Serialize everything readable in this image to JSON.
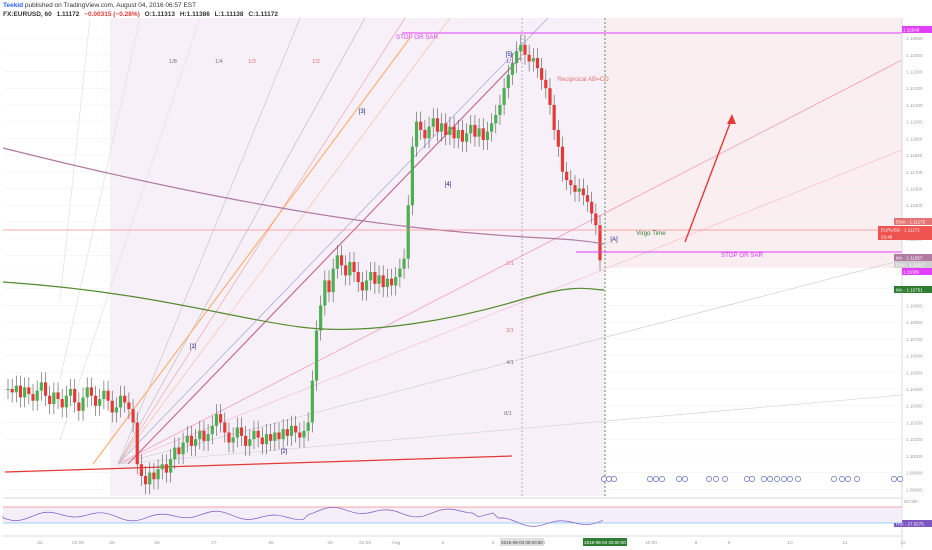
{
  "header": {
    "author": "Teekid",
    "published_text": "published on TradingView.com, August 04, 2016 06:57 EST",
    "symbol": "FX:EURUSD, 60",
    "last": "1.11172",
    "change": "−0.00315 (−0.28%)",
    "open": "O:1.11313",
    "high": "H:1.11386",
    "low": "L:1.11138",
    "close": "C:1.11172"
  },
  "chart_data": {
    "type": "line",
    "title": "",
    "price_axis_ticks": [
      "1.12500",
      "1.12400",
      "1.12300",
      "1.12200",
      "1.12100",
      "1.12000",
      "1.11900",
      "1.11800",
      "1.11700",
      "1.11600",
      "1.11500",
      "1.11400",
      "1.11300",
      "1.11200",
      "1.11100",
      "1.11000",
      "1.10900",
      "1.10800",
      "1.10700",
      "1.10600",
      "1.10500",
      "1.10400",
      "1.10300",
      "1.10200",
      "1.10100",
      "1.10000",
      "1.09900",
      "1.09800"
    ],
    "time_axis_ticks": [
      "22",
      "22:00",
      "25",
      "26",
      "27",
      "28",
      "29",
      "21:00",
      "Aug",
      "2",
      "3",
      "4",
      "10:00",
      "8",
      "9",
      "10",
      "11",
      "12"
    ],
    "time_markers": [
      "2016-08-03 09:00:00",
      "2016-08-04 20:00:00"
    ],
    "price_series_close": [
      1.104,
      1.1038,
      1.1042,
      1.1035,
      1.1041,
      1.1037,
      1.1033,
      1.1039,
      1.1044,
      1.1036,
      1.1031,
      1.1038,
      1.1034,
      1.1029,
      1.1036,
      1.104,
      1.1032,
      1.1027,
      1.1035,
      1.1041,
      1.1036,
      1.103,
      1.1034,
      1.1039,
      1.1033,
      1.1026,
      1.1029,
      1.1036,
      1.1032,
      1.1028,
      1.102,
      1.0995,
      1.0988,
      1.0983,
      1.099,
      1.0986,
      1.0992,
      1.0995,
      1.099,
      1.0998,
      1.1005,
      1.1001,
      1.1008,
      1.1012,
      1.1006,
      1.101,
      1.1015,
      1.1009,
      1.1013,
      1.1018,
      1.1025,
      1.102,
      1.1014,
      1.1008,
      1.1011,
      1.1017,
      1.1012,
      1.1006,
      1.101,
      1.1015,
      1.1011,
      1.1007,
      1.1013,
      1.1009,
      1.1014,
      1.101,
      1.1016,
      1.1012,
      1.1018,
      1.1014,
      1.1011,
      1.1015,
      1.102,
      1.1045,
      1.1075,
      1.109,
      1.1105,
      1.1098,
      1.1112,
      1.112,
      1.1114,
      1.1108,
      1.1116,
      1.111,
      1.1104,
      1.1099,
      1.1105,
      1.111,
      1.1103,
      1.1108,
      1.1101,
      1.1106,
      1.1102,
      1.1107,
      1.1112,
      1.1118,
      1.115,
      1.1185,
      1.12,
      1.1195,
      1.119,
      1.1197,
      1.1202,
      1.1194,
      1.1199,
      1.1192,
      1.1197,
      1.119,
      1.1195,
      1.1188,
      1.1193,
      1.1198,
      1.1191,
      1.1196,
      1.1189,
      1.1194,
      1.1199,
      1.1204,
      1.121,
      1.122,
      1.1228,
      1.1235,
      1.1242,
      1.1246,
      1.124,
      1.1236,
      1.1238,
      1.1232,
      1.1225,
      1.122,
      1.121,
      1.1195,
      1.1185,
      1.117,
      1.1165,
      1.1162,
      1.1158,
      1.116,
      1.1156,
      1.1152,
      1.1145,
      1.1138,
      1.1117
    ],
    "ema_200": [
      1.115,
      1.11,
      1.108
    ],
    "ma_slow": [
      1.1088,
      1.1055,
      1.1072
    ],
    "rsi": {
      "label": "RSI",
      "value": "27.5575",
      "levels": [
        70,
        30
      ]
    },
    "wave_labels": [
      "[1]",
      "[2]",
      "[3]",
      "[4]",
      "[5]",
      "[A]"
    ],
    "gann_fan_labels": [
      "1/8",
      "1/4",
      "1/3",
      "1/2",
      "1/1",
      "2/1",
      "3/1",
      "4/1",
      "8/1"
    ],
    "annotations": [
      "STOP OR SAR",
      "Reciprocal AB=CD",
      "Virgo Time",
      "STOP OR SAR"
    ],
    "price_labels": [
      {
        "text": "1.12549",
        "color": "#e040fb"
      },
      {
        "text": "EMA · 1.11175",
        "color": "#e57373"
      },
      {
        "text": "EURUSD · 1.11172",
        "color": "#ef5350"
      },
      {
        "text": "23:48",
        "color": "#ef5350"
      },
      {
        "text": "MA · 1.11057",
        "color": "#b07aa1"
      },
      {
        "text": "EMA · 1.11017",
        "color": "#cfcfcf"
      },
      {
        "text": "1.11009",
        "color": "#e040fb"
      },
      {
        "text": "MA · 1.10751",
        "color": "#2e7d32"
      },
      {
        "text": "RSI · 27.5575",
        "color": "#7e57c2"
      }
    ],
    "colors": {
      "up": "#4caf50",
      "down": "#e53935",
      "ema": "#b07aa1",
      "ma": "#558b2f",
      "stop": "#e040fb",
      "arrow": "#e53935"
    }
  }
}
